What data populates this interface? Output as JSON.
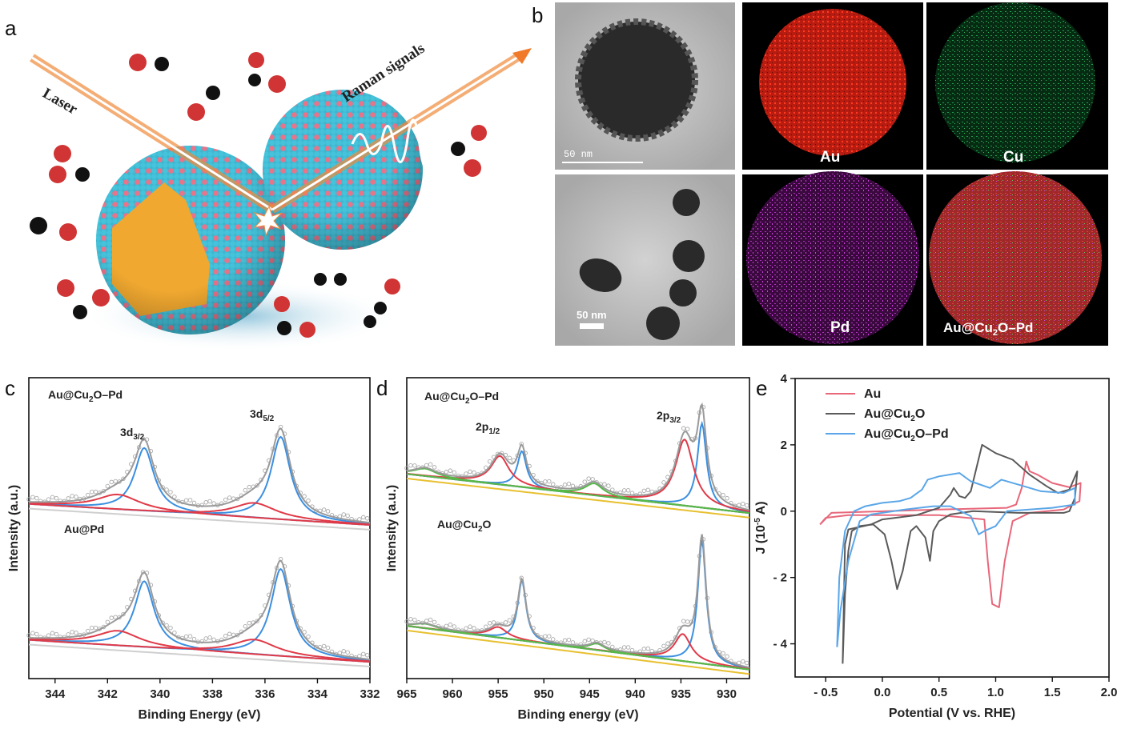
{
  "panels": {
    "a": {
      "label": "a",
      "laser": "Laser",
      "raman": "Raman signals"
    },
    "b": {
      "label": "b",
      "scale_top": "50 nm",
      "scale_bottom": "50 nm",
      "maps": {
        "au": "Au",
        "cu": "Cu",
        "pd": "Pd",
        "overlay_base": "Au@Cu",
        "overlay_sub": "2",
        "overlay_tail": "O–Pd"
      }
    },
    "c": {
      "label": "c"
    },
    "d": {
      "label": "d"
    },
    "e": {
      "label": "e"
    }
  },
  "colors": {
    "pd0": "#3b8fe0",
    "ox": "#e03a48",
    "envelope": "#9a9a9a",
    "background": "#cfcfcf",
    "sat": "#57b84a",
    "bgline": "#e8c030",
    "au": "#e8677a",
    "au_cu2o": "#5a5a5a",
    "au_cu2o_pd": "#5aa6e8"
  },
  "chart_data": [
    {
      "id": "c",
      "type": "line",
      "title": "",
      "xlabel": "Binding Energy (eV)",
      "ylabel": "Intensity (a.u.)",
      "xlim": [
        345,
        332
      ],
      "ylim": [
        0,
        10
      ],
      "xticks": [
        "344",
        "342",
        "340",
        "338",
        "336",
        "334",
        "332"
      ],
      "annotations": [
        {
          "base": "3d",
          "sub": "3/2"
        },
        {
          "base": "3d",
          "sub": "5/2"
        }
      ],
      "spectra": [
        {
          "name_base": "Au@Cu",
          "name_sub": "2",
          "name_tail": "O–Pd",
          "baseline": [
            5.8,
            5.1
          ],
          "peaks": [
            {
              "component": "Pd0",
              "center": 340.6,
              "height": 2.1,
              "hwhm": 0.45
            },
            {
              "component": "Pd0",
              "center": 335.4,
              "height": 2.75,
              "hwhm": 0.45
            },
            {
              "component": "Pd2+",
              "center": 341.6,
              "height": 0.5,
              "hwhm": 1.0
            },
            {
              "component": "Pd2+",
              "center": 336.4,
              "height": 0.5,
              "hwhm": 1.0
            }
          ]
        },
        {
          "name_base": "Au@Pd",
          "name_sub": "",
          "name_tail": "",
          "baseline": [
            1.28,
            0.55
          ],
          "peaks": [
            {
              "component": "Pd0",
              "center": 340.6,
              "height": 2.2,
              "hwhm": 0.45
            },
            {
              "component": "Pd0",
              "center": 335.4,
              "height": 2.9,
              "hwhm": 0.45
            },
            {
              "component": "Pd2+",
              "center": 341.6,
              "height": 0.5,
              "hwhm": 1.0
            },
            {
              "component": "Pd2+",
              "center": 336.4,
              "height": 0.5,
              "hwhm": 1.0
            }
          ]
        }
      ]
    },
    {
      "id": "d",
      "type": "line",
      "title": "",
      "xlabel": "Binding energy (eV)",
      "ylabel": "Intensity (a.u.)",
      "xlim": [
        965,
        927.5
      ],
      "ylim": [
        0,
        10
      ],
      "xticks": [
        "965",
        "960",
        "955",
        "950",
        "945",
        "940",
        "935",
        "930"
      ],
      "annotations": [
        {
          "base": "2p",
          "sub": "1/2"
        },
        {
          "base": "2p",
          "sub": "3/2"
        }
      ],
      "spectra": [
        {
          "name_base": "Au@Cu",
          "name_sub": "2",
          "name_tail": "O–Pd",
          "baseline": [
            6.8,
            5.5
          ],
          "peaks": [
            {
              "component": "Cu+",
              "center": 952.4,
              "height": 1.2,
              "hwhm": 0.6
            },
            {
              "component": "Cu+",
              "center": 932.7,
              "height": 2.8,
              "hwhm": 0.6
            },
            {
              "component": "Cu2+",
              "center": 954.8,
              "height": 0.95,
              "hwhm": 1.2
            },
            {
              "component": "Cu2+",
              "center": 934.6,
              "height": 2.2,
              "hwhm": 1.2
            },
            {
              "component": "satellite",
              "center": 944.5,
              "height": 0.4,
              "hwhm": 1.2
            },
            {
              "component": "satellite",
              "center": 963.0,
              "height": 0.25,
              "hwhm": 1.5
            }
          ]
        },
        {
          "name_base": "Au@Cu",
          "name_sub": "2",
          "name_tail": "O",
          "baseline": [
            1.75,
            0.3
          ],
          "peaks": [
            {
              "component": "Cu+",
              "center": 952.4,
              "height": 2.0,
              "hwhm": 0.55
            },
            {
              "component": "Cu+",
              "center": 932.7,
              "height": 4.1,
              "hwhm": 0.55
            },
            {
              "component": "Cu2+",
              "center": 955.0,
              "height": 0.35,
              "hwhm": 1.2
            },
            {
              "component": "Cu2+",
              "center": 934.8,
              "height": 0.9,
              "hwhm": 1.1
            },
            {
              "component": "satellite",
              "center": 944.2,
              "height": 0.22,
              "hwhm": 1.0
            },
            {
              "component": "satellite",
              "center": 963.0,
              "height": 0.15,
              "hwhm": 1.5
            }
          ]
        }
      ]
    },
    {
      "id": "e",
      "type": "line",
      "title": "",
      "xlabel": "Potential (V vs. RHE)",
      "ylabel_base": "J (10",
      "ylabel_sup": "-5",
      "ylabel_tail": " A)",
      "xlim": [
        -0.77,
        2.0
      ],
      "ylim": [
        -5,
        4
      ],
      "xticks": [
        {
          "v": -0.5,
          "t": "- 0.5"
        },
        {
          "v": 0,
          "t": "0.0"
        },
        {
          "v": 0.5,
          "t": "0.5"
        },
        {
          "v": 1.0,
          "t": "1.0"
        },
        {
          "v": 1.5,
          "t": "1.5"
        },
        {
          "v": 2.0,
          "t": "2.0"
        }
      ],
      "yticks": [
        {
          "v": 4,
          "t": "4"
        },
        {
          "v": 2,
          "t": "2"
        },
        {
          "v": 0,
          "t": "0"
        },
        {
          "v": -2,
          "t": "- 2"
        },
        {
          "v": -4,
          "t": "- 4"
        }
      ],
      "legend": "top-left",
      "series": [
        {
          "name_base": "Au",
          "name_sub": "",
          "name_tail": "",
          "color_key": "au",
          "points": [
            [
              -0.55,
              -0.4
            ],
            [
              -0.45,
              -0.05
            ],
            [
              0.5,
              0.05
            ],
            [
              1.1,
              0.1
            ],
            [
              1.18,
              0.2
            ],
            [
              1.23,
              0.7
            ],
            [
              1.27,
              1.5
            ],
            [
              1.3,
              1.2
            ],
            [
              1.37,
              1.1
            ],
            [
              1.5,
              0.85
            ],
            [
              1.65,
              0.72
            ],
            [
              1.75,
              0.85
            ],
            [
              1.74,
              0.3
            ],
            [
              1.6,
              0.05
            ],
            [
              1.3,
              -0.05
            ],
            [
              1.15,
              -0.3
            ],
            [
              1.08,
              -1.5
            ],
            [
              1.03,
              -2.9
            ],
            [
              0.97,
              -2.8
            ],
            [
              0.93,
              -1.5
            ],
            [
              0.9,
              -0.25
            ],
            [
              0.5,
              -0.12
            ],
            [
              -0.3,
              -0.12
            ],
            [
              -0.5,
              -0.2
            ],
            [
              -0.55,
              -0.4
            ]
          ]
        },
        {
          "name_base": "Au@Cu",
          "name_sub": "2",
          "name_tail": "O",
          "color_key": "au_cu2o",
          "points": [
            [
              -0.35,
              -4.6
            ],
            [
              -0.33,
              -1.0
            ],
            [
              -0.3,
              -0.55
            ],
            [
              -0.1,
              -0.4
            ],
            [
              0.0,
              -0.25
            ],
            [
              0.3,
              -0.12
            ],
            [
              0.5,
              0.1
            ],
            [
              0.6,
              0.5
            ],
            [
              0.63,
              0.7
            ],
            [
              0.68,
              0.45
            ],
            [
              0.73,
              0.4
            ],
            [
              0.78,
              0.6
            ],
            [
              0.88,
              2.0
            ],
            [
              1.0,
              1.75
            ],
            [
              1.15,
              1.55
            ],
            [
              1.3,
              1.1
            ],
            [
              1.45,
              0.75
            ],
            [
              1.55,
              0.55
            ],
            [
              1.65,
              0.65
            ],
            [
              1.72,
              1.2
            ],
            [
              1.7,
              0.4
            ],
            [
              1.65,
              0.0
            ],
            [
              1.6,
              -0.05
            ],
            [
              1.2,
              -0.05
            ],
            [
              0.8,
              0.0
            ],
            [
              0.6,
              -0.1
            ],
            [
              0.5,
              -0.3
            ],
            [
              0.45,
              -0.6
            ],
            [
              0.42,
              -1.5
            ],
            [
              0.38,
              -0.8
            ],
            [
              0.3,
              -0.45
            ],
            [
              0.25,
              -0.6
            ],
            [
              0.18,
              -1.8
            ],
            [
              0.13,
              -2.35
            ],
            [
              0.08,
              -1.5
            ],
            [
              0.02,
              -0.7
            ],
            [
              -0.08,
              -0.4
            ],
            [
              -0.2,
              -0.45
            ],
            [
              -0.27,
              -0.6
            ],
            [
              -0.3,
              -1.2
            ],
            [
              -0.33,
              -2.5
            ],
            [
              -0.35,
              -4.6
            ]
          ]
        },
        {
          "name_base": "Au@Cu",
          "name_sub": "2",
          "name_tail": "O–Pd",
          "color_key": "au_cu2o_pd",
          "points": [
            [
              -0.4,
              -4.1
            ],
            [
              -0.38,
              -2.0
            ],
            [
              -0.33,
              -0.6
            ],
            [
              -0.25,
              0.0
            ],
            [
              -0.15,
              0.15
            ],
            [
              0.0,
              0.25
            ],
            [
              0.15,
              0.3
            ],
            [
              0.25,
              0.4
            ],
            [
              0.35,
              0.65
            ],
            [
              0.4,
              0.95
            ],
            [
              0.5,
              1.05
            ],
            [
              0.68,
              1.15
            ],
            [
              0.78,
              0.9
            ],
            [
              0.95,
              0.7
            ],
            [
              1.05,
              0.95
            ],
            [
              1.2,
              0.8
            ],
            [
              1.4,
              0.6
            ],
            [
              1.6,
              0.55
            ],
            [
              1.7,
              0.7
            ],
            [
              1.7,
              0.2
            ],
            [
              1.5,
              0.1
            ],
            [
              1.1,
              0.0
            ],
            [
              1.0,
              -0.45
            ],
            [
              0.9,
              -0.6
            ],
            [
              0.85,
              -0.7
            ],
            [
              0.78,
              -0.15
            ],
            [
              0.6,
              0.15
            ],
            [
              0.45,
              0.15
            ],
            [
              0.2,
              0.05
            ],
            [
              -0.1,
              -0.1
            ],
            [
              -0.2,
              -0.3
            ],
            [
              -0.3,
              -1.5
            ],
            [
              -0.37,
              -3.0
            ],
            [
              -0.4,
              -4.1
            ]
          ]
        }
      ]
    }
  ]
}
